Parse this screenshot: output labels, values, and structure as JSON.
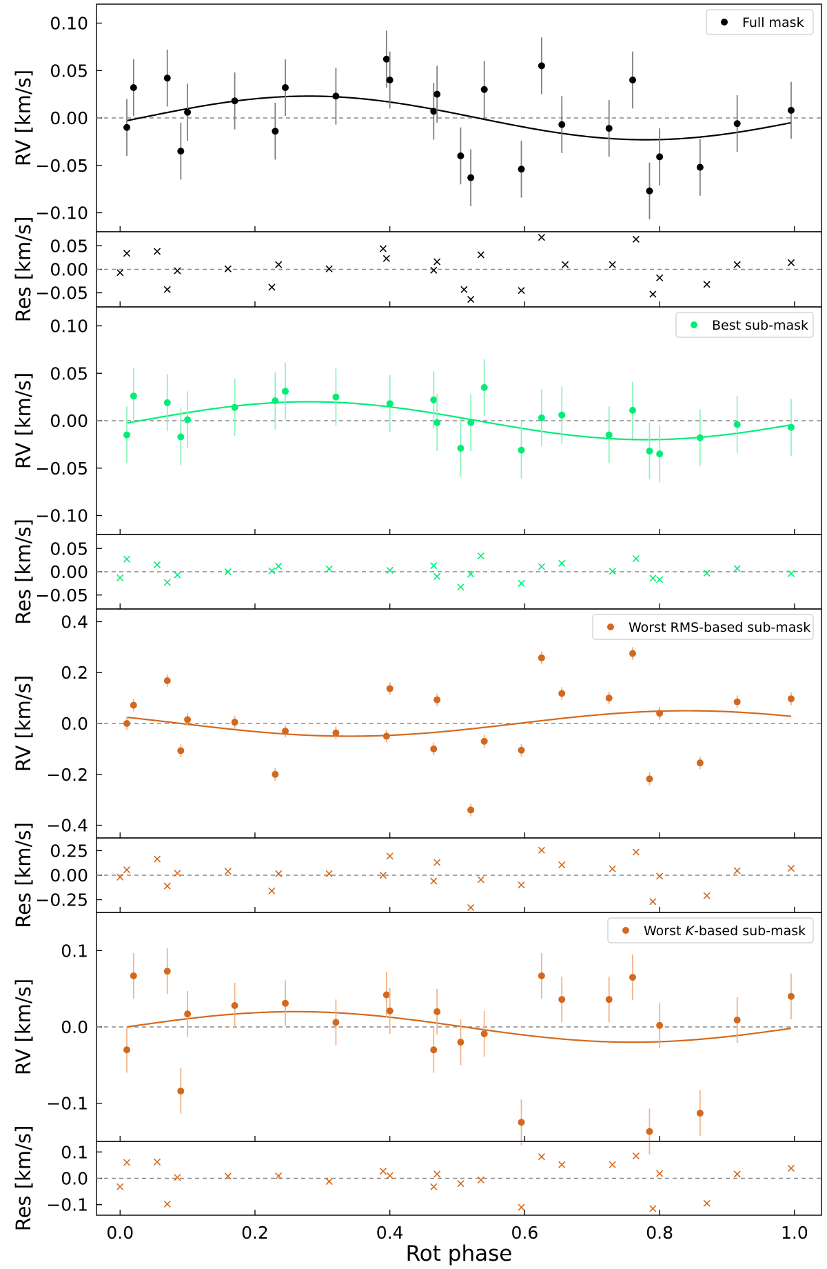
{
  "figure": {
    "xlabel": "Rot phase",
    "xlim": [
      -0.035,
      1.04
    ],
    "xticks": [
      0.0,
      0.2,
      0.4,
      0.6,
      0.8,
      1.0
    ]
  },
  "chart_data": [
    {
      "type": "scatter",
      "id": "full",
      "color": "#000000",
      "errcolor": "#808080",
      "reslabel_color": "#000000",
      "legend": "Full mask",
      "ylabel": "RV [km/s]",
      "ylim": [
        -0.12,
        0.12
      ],
      "yticks": [
        -0.1,
        -0.05,
        0.0,
        0.05,
        0.1
      ],
      "ydecimals": 2,
      "model": {
        "amp": 0.023,
        "peak": 0.28,
        "offset": 0.0
      },
      "x": [
        0.01,
        0.02,
        0.07,
        0.09,
        0.1,
        0.17,
        0.23,
        0.245,
        0.32,
        0.395,
        0.4,
        0.465,
        0.47,
        0.505,
        0.52,
        0.54,
        0.595,
        0.625,
        0.655,
        0.725,
        0.76,
        0.785,
        0.8,
        0.86,
        0.915,
        0.995
      ],
      "y": [
        -0.01,
        0.032,
        0.042,
        -0.035,
        0.006,
        0.018,
        -0.014,
        0.032,
        0.023,
        0.062,
        0.04,
        0.007,
        0.025,
        -0.04,
        -0.063,
        0.03,
        -0.054,
        0.055,
        -0.007,
        -0.011,
        0.04,
        -0.077,
        -0.041,
        -0.052,
        -0.006,
        0.008
      ],
      "err": [
        0.03,
        0.03,
        0.03,
        0.03,
        0.03,
        0.03,
        0.03,
        0.03,
        0.03,
        0.03,
        0.03,
        0.03,
        0.03,
        0.03,
        0.03,
        0.03,
        0.03,
        0.03,
        0.03,
        0.03,
        0.03,
        0.03,
        0.03,
        0.03,
        0.03,
        0.03
      ],
      "residuals": {
        "ylabel": "Res [km/s]",
        "ylim": [
          -0.08,
          0.08
        ],
        "yticks": [
          -0.05,
          0.0,
          0.05
        ],
        "ydecimals": 2,
        "x": [
          0.0,
          0.01,
          0.055,
          0.07,
          0.085,
          0.16,
          0.225,
          0.235,
          0.31,
          0.39,
          0.395,
          0.465,
          0.47,
          0.51,
          0.52,
          0.535,
          0.595,
          0.625,
          0.66,
          0.73,
          0.765,
          0.79,
          0.8,
          0.87,
          0.915,
          0.995
        ],
        "y": [
          -0.007,
          0.034,
          0.038,
          -0.043,
          -0.003,
          0.001,
          -0.038,
          0.01,
          0.001,
          0.044,
          0.023,
          -0.002,
          0.016,
          -0.043,
          -0.064,
          0.031,
          -0.045,
          0.068,
          0.01,
          0.01,
          0.064,
          -0.053,
          -0.018,
          -0.032,
          0.01,
          0.014
        ]
      }
    },
    {
      "type": "scatter",
      "id": "best",
      "color": "#00ee76",
      "errcolor": "#8df5bc",
      "reslabel_color": "#000000",
      "legend": "Best sub-mask",
      "ylabel": "RV [km/s]",
      "ylim": [
        -0.12,
        0.12
      ],
      "yticks": [
        -0.1,
        -0.05,
        0.0,
        0.05,
        0.1
      ],
      "ydecimals": 2,
      "model": {
        "amp": 0.02,
        "peak": 0.28,
        "offset": 0.0
      },
      "x": [
        0.01,
        0.02,
        0.07,
        0.09,
        0.1,
        0.17,
        0.23,
        0.245,
        0.32,
        0.4,
        0.465,
        0.47,
        0.505,
        0.52,
        0.54,
        0.595,
        0.625,
        0.655,
        0.725,
        0.76,
        0.785,
        0.8,
        0.86,
        0.915,
        0.995
      ],
      "y": [
        -0.015,
        0.026,
        0.019,
        -0.017,
        0.001,
        0.014,
        0.021,
        0.031,
        0.025,
        0.018,
        0.022,
        -0.002,
        -0.029,
        -0.002,
        0.035,
        -0.031,
        0.003,
        0.006,
        -0.015,
        0.011,
        -0.032,
        -0.035,
        -0.018,
        -0.004,
        -0.007
      ],
      "err": [
        0.03,
        0.03,
        0.03,
        0.03,
        0.03,
        0.03,
        0.03,
        0.03,
        0.03,
        0.03,
        0.03,
        0.03,
        0.03,
        0.03,
        0.03,
        0.03,
        0.03,
        0.03,
        0.03,
        0.03,
        0.03,
        0.03,
        0.03,
        0.03,
        0.03
      ],
      "residuals": {
        "ylabel": "Res [km/s]",
        "ylim": [
          -0.08,
          0.08
        ],
        "yticks": [
          -0.05,
          0.0,
          0.05
        ],
        "ydecimals": 2,
        "x": [
          0.0,
          0.01,
          0.055,
          0.07,
          0.085,
          0.16,
          0.225,
          0.235,
          0.31,
          0.4,
          0.465,
          0.47,
          0.505,
          0.52,
          0.535,
          0.595,
          0.625,
          0.655,
          0.73,
          0.765,
          0.79,
          0.8,
          0.87,
          0.915,
          0.995
        ],
        "y": [
          -0.013,
          0.027,
          0.015,
          -0.023,
          -0.007,
          0.0,
          0.002,
          0.012,
          0.006,
          0.003,
          0.013,
          -0.01,
          -0.033,
          -0.005,
          0.034,
          -0.025,
          0.011,
          0.018,
          0.001,
          0.028,
          -0.014,
          -0.017,
          -0.003,
          0.007,
          -0.004
        ]
      }
    },
    {
      "type": "scatter",
      "id": "worst-rms",
      "color": "#d2691e",
      "errcolor": "#f0b48a",
      "reslabel_color": "#000000",
      "legend": "Worst RMS-based sub-mask",
      "ylabel": "RV [km/s]",
      "ylim": [
        -0.45,
        0.45
      ],
      "yticks": [
        -0.4,
        -0.2,
        0.0,
        0.2,
        0.4
      ],
      "ydecimals": 1,
      "model": {
        "amp": 0.05,
        "peak": 0.84,
        "offset": 0.0
      },
      "x": [
        0.01,
        0.02,
        0.07,
        0.09,
        0.1,
        0.17,
        0.23,
        0.245,
        0.32,
        0.395,
        0.4,
        0.465,
        0.47,
        0.52,
        0.54,
        0.595,
        0.625,
        0.655,
        0.725,
        0.76,
        0.785,
        0.8,
        0.86,
        0.915,
        0.995
      ],
      "y": [
        0.0,
        0.072,
        0.168,
        -0.107,
        0.015,
        0.005,
        -0.2,
        -0.03,
        -0.037,
        -0.05,
        0.137,
        -0.1,
        0.093,
        -0.34,
        -0.07,
        -0.105,
        0.258,
        0.118,
        0.1,
        0.275,
        -0.218,
        0.04,
        -0.155,
        0.085,
        0.097
      ],
      "err": [
        0.025,
        0.025,
        0.025,
        0.025,
        0.025,
        0.025,
        0.025,
        0.025,
        0.025,
        0.025,
        0.025,
        0.025,
        0.025,
        0.025,
        0.025,
        0.025,
        0.025,
        0.025,
        0.025,
        0.025,
        0.025,
        0.025,
        0.025,
        0.025,
        0.025
      ],
      "residuals": {
        "ylabel": "Res [km/s]",
        "ylim": [
          -0.38,
          0.38
        ],
        "yticks": [
          -0.25,
          0.0,
          0.25
        ],
        "ydecimals": 2,
        "x": [
          0.0,
          0.01,
          0.055,
          0.07,
          0.085,
          0.16,
          0.225,
          0.235,
          0.31,
          0.39,
          0.4,
          0.465,
          0.47,
          0.52,
          0.535,
          0.595,
          0.625,
          0.655,
          0.73,
          0.765,
          0.79,
          0.8,
          0.87,
          0.915,
          0.995
        ],
        "y": [
          -0.02,
          0.055,
          0.165,
          -0.11,
          0.02,
          0.04,
          -0.16,
          0.015,
          0.015,
          0.0,
          0.195,
          -0.06,
          0.13,
          -0.33,
          -0.045,
          -0.1,
          0.255,
          0.105,
          0.065,
          0.235,
          -0.27,
          -0.01,
          -0.21,
          0.045,
          0.07
        ]
      }
    },
    {
      "type": "scatter",
      "id": "worst-k",
      "color": "#d2691e",
      "errcolor": "#f0b48a",
      "reslabel_color": "#000000",
      "legend_prefix": "Worst ",
      "legend_italic": "K",
      "legend_suffix": "-based sub-mask",
      "ylabel": "RV [km/s]",
      "ylim": [
        -0.15,
        0.15
      ],
      "yticks": [
        -0.1,
        0.0,
        0.1
      ],
      "ydecimals": 1,
      "model": {
        "amp": 0.02,
        "peak": 0.26,
        "offset": 0.0
      },
      "x": [
        0.01,
        0.02,
        0.07,
        0.09,
        0.1,
        0.17,
        0.245,
        0.32,
        0.395,
        0.4,
        0.465,
        0.47,
        0.505,
        0.54,
        0.595,
        0.625,
        0.655,
        0.725,
        0.76,
        0.785,
        0.8,
        0.86,
        0.915,
        0.995
      ],
      "y": [
        -0.03,
        0.067,
        0.073,
        -0.084,
        0.017,
        0.028,
        0.031,
        0.006,
        0.042,
        0.021,
        -0.03,
        0.02,
        -0.02,
        -0.009,
        -0.125,
        0.067,
        0.036,
        0.036,
        0.065,
        -0.137,
        0.002,
        -0.113,
        0.009,
        0.04
      ],
      "err": [
        0.03,
        0.03,
        0.03,
        0.03,
        0.03,
        0.03,
        0.03,
        0.03,
        0.03,
        0.03,
        0.03,
        0.03,
        0.03,
        0.03,
        0.03,
        0.03,
        0.03,
        0.03,
        0.03,
        0.03,
        0.03,
        0.03,
        0.03,
        0.03
      ],
      "residuals": {
        "ylabel": "Res [km/s]",
        "ylim": [
          -0.14,
          0.14
        ],
        "yticks": [
          -0.1,
          0.0,
          0.1
        ],
        "ydecimals": 1,
        "x": [
          0.0,
          0.01,
          0.055,
          0.07,
          0.085,
          0.16,
          0.235,
          0.31,
          0.39,
          0.4,
          0.465,
          0.47,
          0.505,
          0.535,
          0.595,
          0.625,
          0.655,
          0.73,
          0.765,
          0.79,
          0.8,
          0.87,
          0.915,
          0.995
        ],
        "y": [
          -0.032,
          0.06,
          0.062,
          -0.098,
          0.003,
          0.008,
          0.009,
          -0.012,
          0.027,
          0.01,
          -0.032,
          0.016,
          -0.02,
          -0.006,
          -0.11,
          0.082,
          0.052,
          0.052,
          0.085,
          -0.115,
          0.018,
          -0.095,
          0.016,
          0.038
        ]
      }
    }
  ]
}
